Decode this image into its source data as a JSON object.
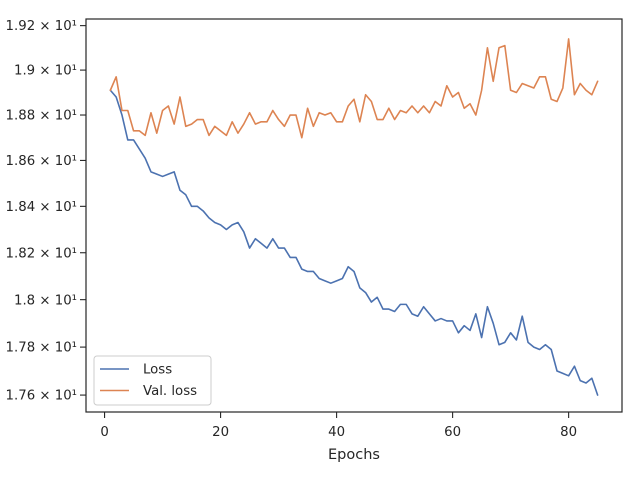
{
  "chart_data": {
    "type": "line",
    "xlabel": "Epochs",
    "ylabel": "",
    "title": "",
    "ylim": [
      17.53,
      19.23
    ],
    "xlim": [
      -3.2,
      89.2
    ],
    "y_scale": "log",
    "grid": false,
    "legend_position": "lower-left",
    "x_ticks": [
      0,
      20,
      40,
      60,
      80
    ],
    "x_tick_labels": [
      "0",
      "20",
      "40",
      "60",
      "80"
    ],
    "y_ticks": [
      17.6,
      17.8,
      18.0,
      18.2,
      18.4,
      18.6,
      18.8,
      19.0,
      19.2
    ],
    "y_tick_labels": [
      "1.76 × 10¹",
      "1.78 × 10¹",
      "1.8 × 10¹",
      "1.82 × 10¹",
      "1.84 × 10¹",
      "1.86 × 10¹",
      "1.88 × 10¹",
      "1.9 × 10¹",
      "1.92 × 10¹"
    ],
    "series": [
      {
        "name": "Loss",
        "color": "#4c72b0",
        "x": [
          1,
          2,
          3,
          4,
          5,
          6,
          7,
          8,
          9,
          10,
          11,
          12,
          13,
          14,
          15,
          16,
          17,
          18,
          19,
          20,
          21,
          22,
          23,
          24,
          25,
          26,
          27,
          28,
          29,
          30,
          31,
          32,
          33,
          34,
          35,
          36,
          37,
          38,
          39,
          40,
          41,
          42,
          43,
          44,
          45,
          46,
          47,
          48,
          49,
          50,
          51,
          52,
          53,
          54,
          55,
          56,
          57,
          58,
          59,
          60,
          61,
          62,
          63,
          64,
          65,
          66,
          67,
          68,
          69,
          70,
          71,
          72,
          73,
          74,
          75,
          76,
          77,
          78,
          79,
          80,
          81,
          82,
          83,
          84,
          85
        ],
        "values": [
          18.91,
          18.88,
          18.8,
          18.69,
          18.69,
          18.65,
          18.61,
          18.55,
          18.54,
          18.53,
          18.54,
          18.55,
          18.47,
          18.45,
          18.4,
          18.4,
          18.38,
          18.35,
          18.33,
          18.32,
          18.3,
          18.32,
          18.33,
          18.29,
          18.22,
          18.26,
          18.24,
          18.22,
          18.26,
          18.22,
          18.22,
          18.18,
          18.18,
          18.13,
          18.12,
          18.12,
          18.09,
          18.08,
          18.07,
          18.08,
          18.09,
          18.14,
          18.12,
          18.05,
          18.03,
          17.99,
          18.01,
          17.96,
          17.96,
          17.95,
          17.98,
          17.98,
          17.94,
          17.93,
          17.97,
          17.94,
          17.91,
          17.92,
          17.91,
          17.91,
          17.86,
          17.89,
          17.87,
          17.94,
          17.84,
          17.97,
          17.9,
          17.81,
          17.82,
          17.86,
          17.83,
          17.93,
          17.82,
          17.8,
          17.79,
          17.81,
          17.79,
          17.7,
          17.69,
          17.68,
          17.72,
          17.66,
          17.65,
          17.67,
          17.6
        ]
      },
      {
        "name": "Val. loss",
        "color": "#dd8452",
        "x": [
          1,
          2,
          3,
          4,
          5,
          6,
          7,
          8,
          9,
          10,
          11,
          12,
          13,
          14,
          15,
          16,
          17,
          18,
          19,
          20,
          21,
          22,
          23,
          24,
          25,
          26,
          27,
          28,
          29,
          30,
          31,
          32,
          33,
          34,
          35,
          36,
          37,
          38,
          39,
          40,
          41,
          42,
          43,
          44,
          45,
          46,
          47,
          48,
          49,
          50,
          51,
          52,
          53,
          54,
          55,
          56,
          57,
          58,
          59,
          60,
          61,
          62,
          63,
          64,
          65,
          66,
          67,
          68,
          69,
          70,
          71,
          72,
          73,
          74,
          75,
          76,
          77,
          78,
          79,
          80,
          81,
          82,
          83,
          84,
          85
        ],
        "values": [
          18.91,
          18.97,
          18.82,
          18.82,
          18.73,
          18.73,
          18.71,
          18.81,
          18.72,
          18.82,
          18.84,
          18.76,
          18.88,
          18.75,
          18.76,
          18.78,
          18.78,
          18.71,
          18.75,
          18.73,
          18.71,
          18.77,
          18.72,
          18.76,
          18.81,
          18.76,
          18.77,
          18.77,
          18.82,
          18.78,
          18.75,
          18.8,
          18.8,
          18.7,
          18.83,
          18.75,
          18.81,
          18.8,
          18.81,
          18.77,
          18.77,
          18.84,
          18.87,
          18.77,
          18.89,
          18.86,
          18.78,
          18.78,
          18.83,
          18.78,
          18.82,
          18.81,
          18.84,
          18.81,
          18.84,
          18.81,
          18.86,
          18.84,
          18.93,
          18.88,
          18.9,
          18.83,
          18.85,
          18.8,
          18.91,
          19.1,
          18.95,
          19.1,
          19.11,
          18.91,
          18.9,
          18.94,
          18.93,
          18.92,
          18.97,
          18.97,
          18.87,
          18.86,
          18.92,
          19.14,
          18.89,
          18.94,
          18.91,
          18.89,
          18.95
        ]
      }
    ]
  }
}
